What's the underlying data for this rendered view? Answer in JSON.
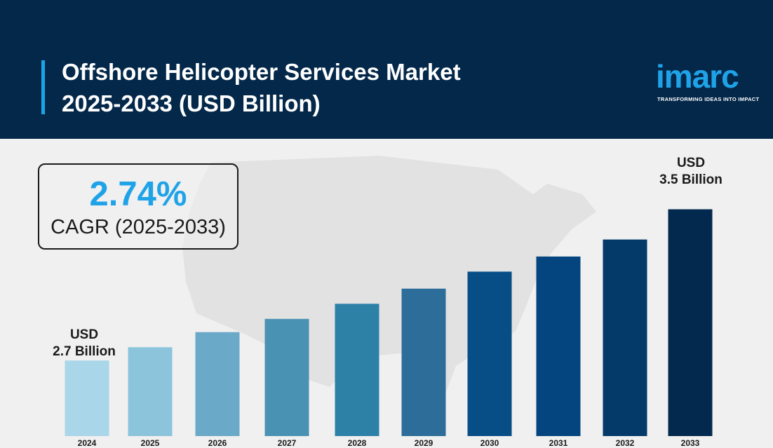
{
  "header": {
    "title_line1": "Offshore Helicopter Services Market",
    "title_line2": "2025-2033 (USD Billion)",
    "colors": {
      "background": "#04284a",
      "accent": "#1fa3e8"
    }
  },
  "logo": {
    "text": "imarc",
    "tagline": "TRANSFORMING IDEAS INTO IMPACT"
  },
  "cagr": {
    "value": "2.74%",
    "label": "CAGR (2025-2033)"
  },
  "callouts": {
    "start": {
      "line1": "USD",
      "line2": "2.7 Billion"
    },
    "end": {
      "line1": "USD",
      "line2": "3.5 Billion"
    }
  },
  "chart_data": {
    "type": "bar",
    "title": "Offshore Helicopter Services Market 2025-2033 (USD Billion)",
    "categories": [
      "2024",
      "2025",
      "2026",
      "2027",
      "2028",
      "2029",
      "2030",
      "2031",
      "2032",
      "2033"
    ],
    "values": [
      2.7,
      2.77,
      2.85,
      2.92,
      3.0,
      3.08,
      3.17,
      3.25,
      3.34,
      3.5
    ],
    "ylim": [
      2.3,
      3.55
    ],
    "grid": false,
    "legend": "none",
    "bar_colors": [
      "#a9d6e8",
      "#8cc4dc",
      "#6aaac8",
      "#4a92b3",
      "#2e81a6",
      "#2c6e99",
      "#084e86",
      "#044580",
      "#033a6a",
      "#032a4e"
    ]
  }
}
